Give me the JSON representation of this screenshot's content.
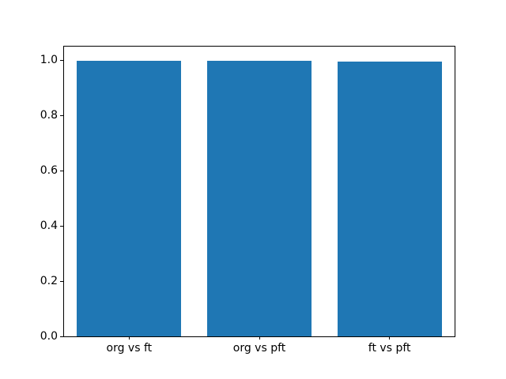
{
  "figure": {
    "background": "#ffffff",
    "axis_color": "#000000"
  },
  "chart_data": {
    "type": "bar",
    "title": "",
    "xlabel": "",
    "ylabel": "",
    "categories": [
      "org vs ft",
      "org vs pft",
      "ft vs pft"
    ],
    "values": [
      0.998,
      0.998,
      0.995
    ],
    "bar_color": "#1f77b4",
    "ylim": [
      0,
      1.05
    ],
    "yticks": [
      "0.0",
      "0.2",
      "0.4",
      "0.6",
      "0.8",
      "1.0"
    ],
    "bar_width_fraction": 0.8,
    "grid": false,
    "legend": false
  }
}
